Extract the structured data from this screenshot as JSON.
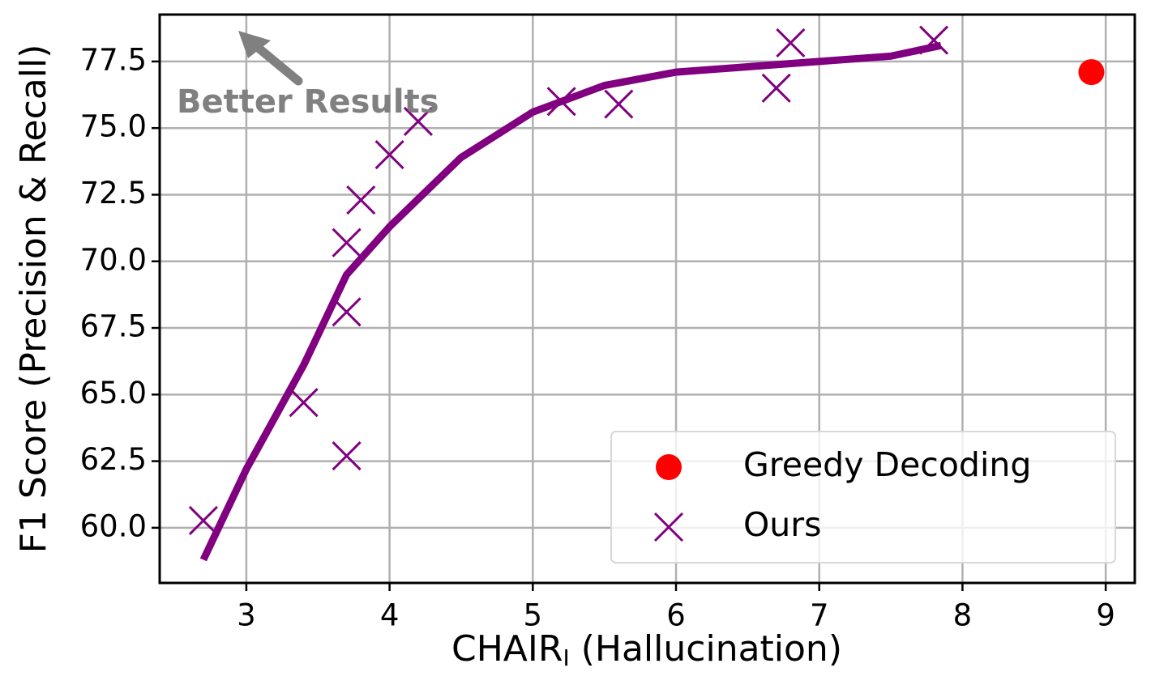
{
  "chart_data": {
    "type": "scatter",
    "xlabel": [
      "CHAIR",
      "I",
      " (Hallucination)"
    ],
    "ylabel": "F1 Score (Precision & Recall)",
    "annotation": "Better Results",
    "xlim": [
      2.395,
      9.203
    ],
    "ylim": [
      57.93,
      79.26
    ],
    "xticks": [
      3,
      4,
      5,
      6,
      7,
      8,
      9
    ],
    "yticks": [
      {
        "value": 60,
        "label": "60.0"
      },
      62.5,
      {
        "value": 65,
        "label": "65.0"
      },
      67.5,
      {
        "value": 70,
        "label": "70.0"
      },
      72.5,
      {
        "value": 75,
        "label": "75.0"
      },
      77.5
    ],
    "grid": true,
    "legend": "lower right",
    "series": [
      {
        "name": "Greedy Decoding",
        "color": "#ff0000",
        "marker": "o",
        "x": [
          8.9
        ],
        "values": [
          77.1
        ]
      },
      {
        "name": "Ours",
        "color": "#800080",
        "marker": "x",
        "x": [
          2.7,
          3.4,
          3.7,
          3.7,
          3.7,
          3.8,
          4.0,
          4.2,
          5.2,
          5.6,
          6.7,
          6.8,
          7.8
        ],
        "values": [
          60.27,
          64.7,
          62.7,
          68.1,
          70.7,
          72.3,
          74.0,
          75.25,
          76.0,
          75.9,
          76.5,
          78.2,
          78.3
        ]
      },
      {
        "color": "#800080",
        "marker": "line",
        "x": [
          2.7,
          3.0,
          3.4,
          3.7,
          4.0,
          4.5,
          5.0,
          5.5,
          6.0,
          6.5,
          7.0,
          7.5,
          7.85
        ],
        "values": [
          58.8,
          62.2,
          66.1,
          69.5,
          71.3,
          73.9,
          75.6,
          76.6,
          77.1,
          77.3,
          77.5,
          77.7,
          78.1
        ]
      }
    ]
  }
}
